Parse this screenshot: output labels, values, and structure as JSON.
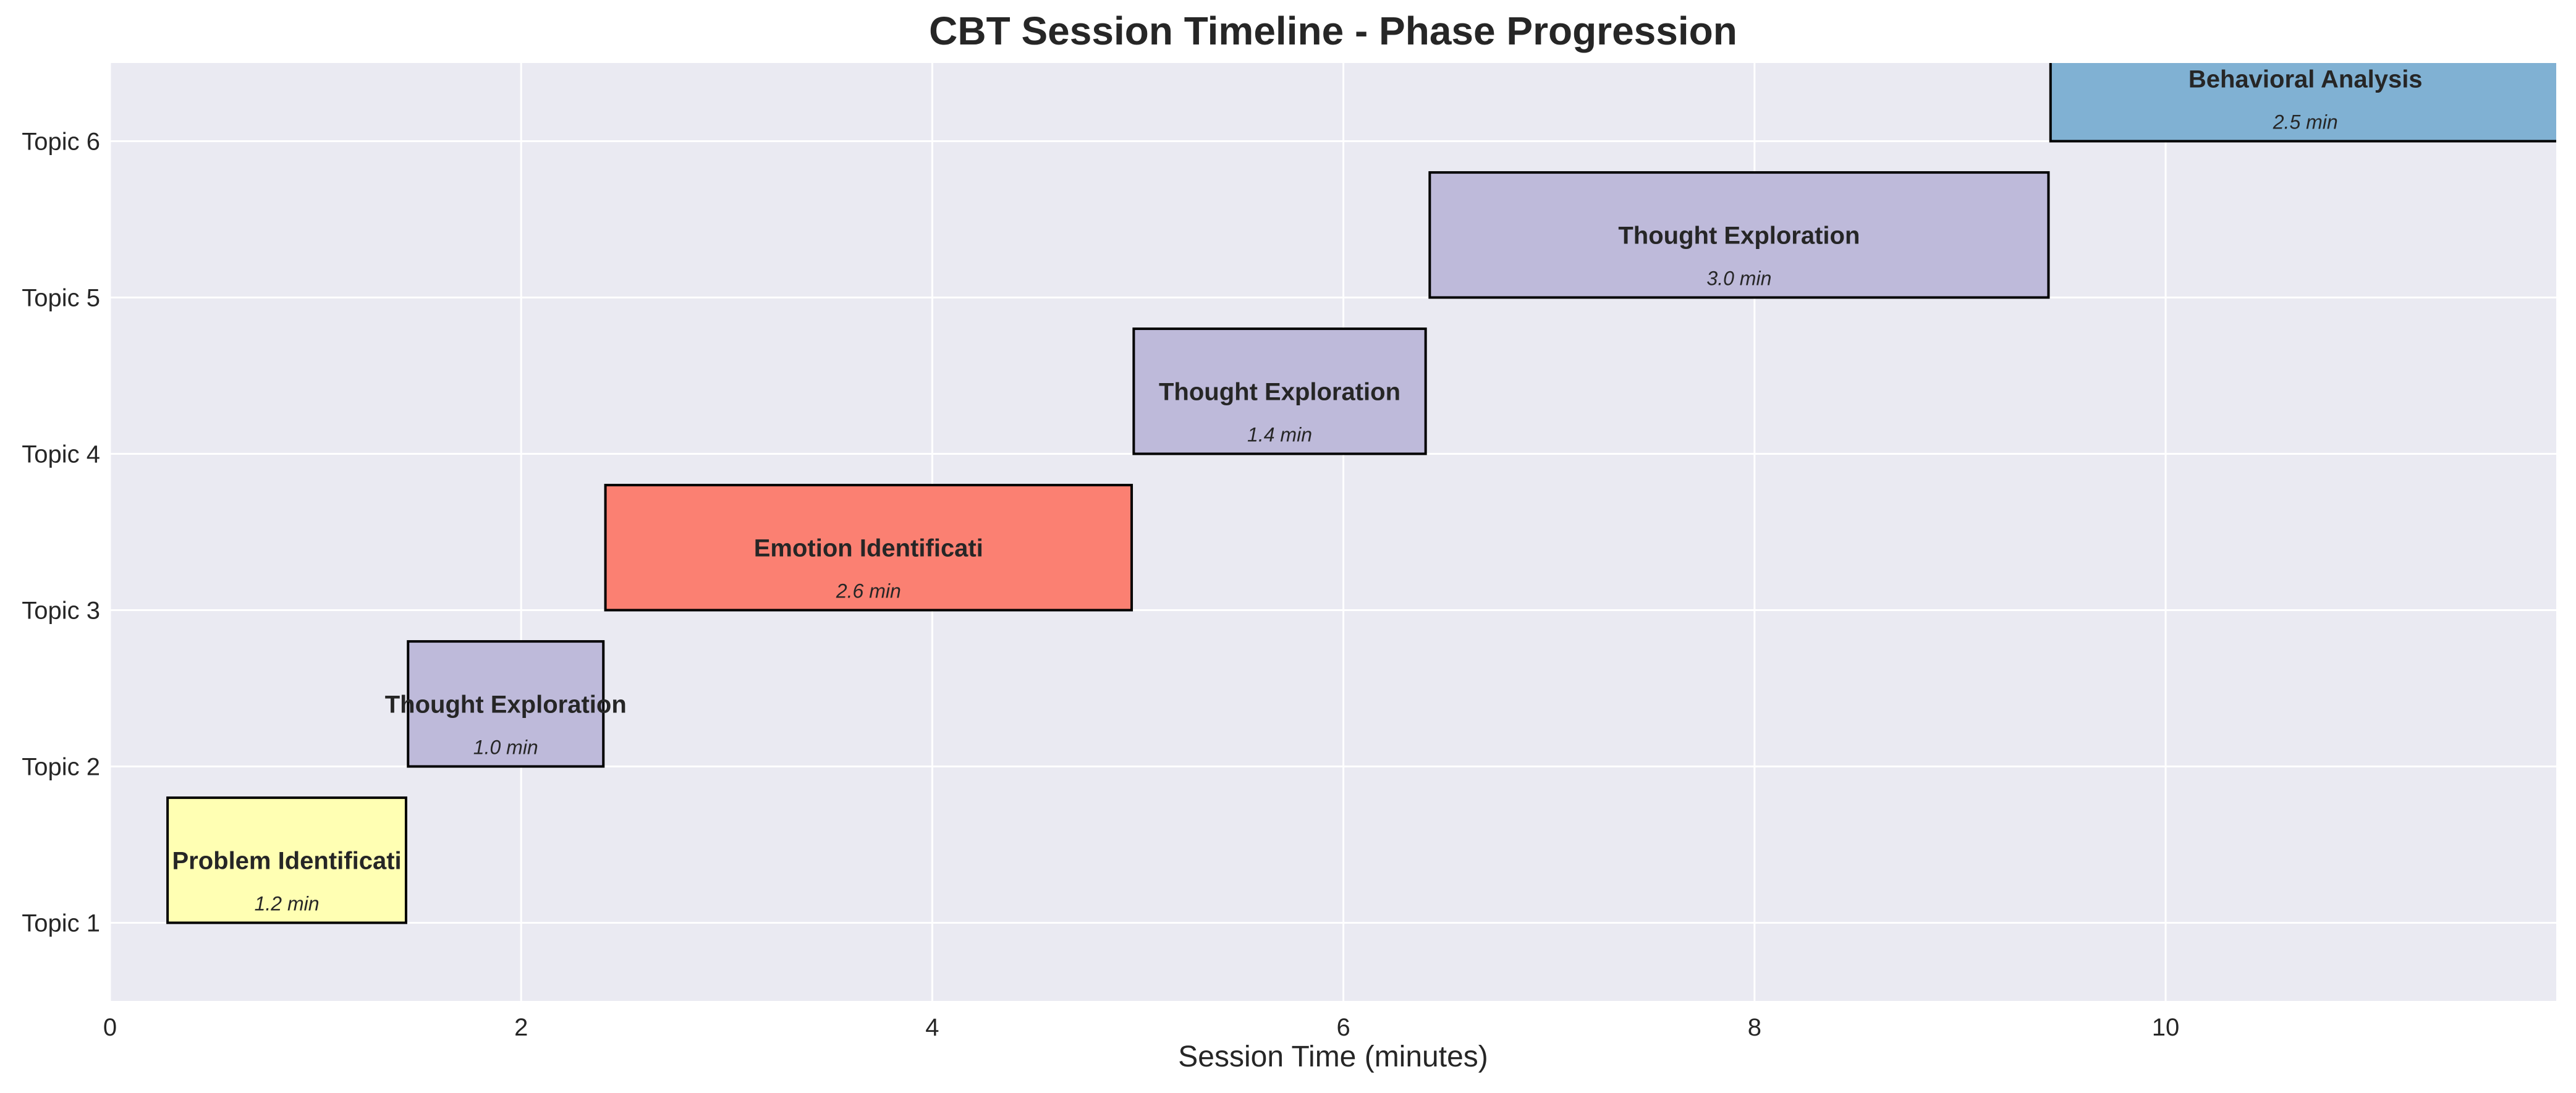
{
  "chart_data": {
    "type": "bar",
    "orientation": "horizontal",
    "title": "CBT Session Timeline - Phase Progression",
    "xlabel": "Session Time (minutes)",
    "ylabel": "",
    "xlim": [
      0,
      11.9
    ],
    "ylim": [
      0.5,
      6.5
    ],
    "xticks": [
      0,
      2,
      4,
      6,
      8,
      10
    ],
    "categories": [
      "Topic 1",
      "Topic 2",
      "Topic 3",
      "Topic 4",
      "Topic 5",
      "Topic 6"
    ],
    "grid": true,
    "background": "#eaeaf2",
    "bars": [
      {
        "topic": "Topic 1",
        "y": 1,
        "start": 0.28,
        "duration": 1.16,
        "label": "Problem Identificati",
        "duration_label": "1.2 min",
        "color": "#ffffb3"
      },
      {
        "topic": "Topic 2",
        "y": 2,
        "start": 1.45,
        "duration": 0.95,
        "label": "Thought Exploration",
        "duration_label": "1.0 min",
        "color": "#bebada"
      },
      {
        "topic": "Topic 3",
        "y": 3,
        "start": 2.41,
        "duration": 2.56,
        "label": "Emotion Identificati",
        "duration_label": "2.6 min",
        "color": "#fb8072"
      },
      {
        "topic": "Topic 4",
        "y": 4,
        "start": 4.98,
        "duration": 1.42,
        "label": "Thought Exploration",
        "duration_label": "1.4 min",
        "color": "#bebada"
      },
      {
        "topic": "Topic 5",
        "y": 5,
        "start": 6.42,
        "duration": 3.01,
        "label": "Thought Exploration",
        "duration_label": "3.0 min",
        "color": "#bebada"
      },
      {
        "topic": "Topic 6",
        "y": 6,
        "start": 9.44,
        "duration": 2.48,
        "label": "Behavioral Analysis",
        "duration_label": "2.5 min",
        "color": "#80b1d3"
      }
    ]
  }
}
